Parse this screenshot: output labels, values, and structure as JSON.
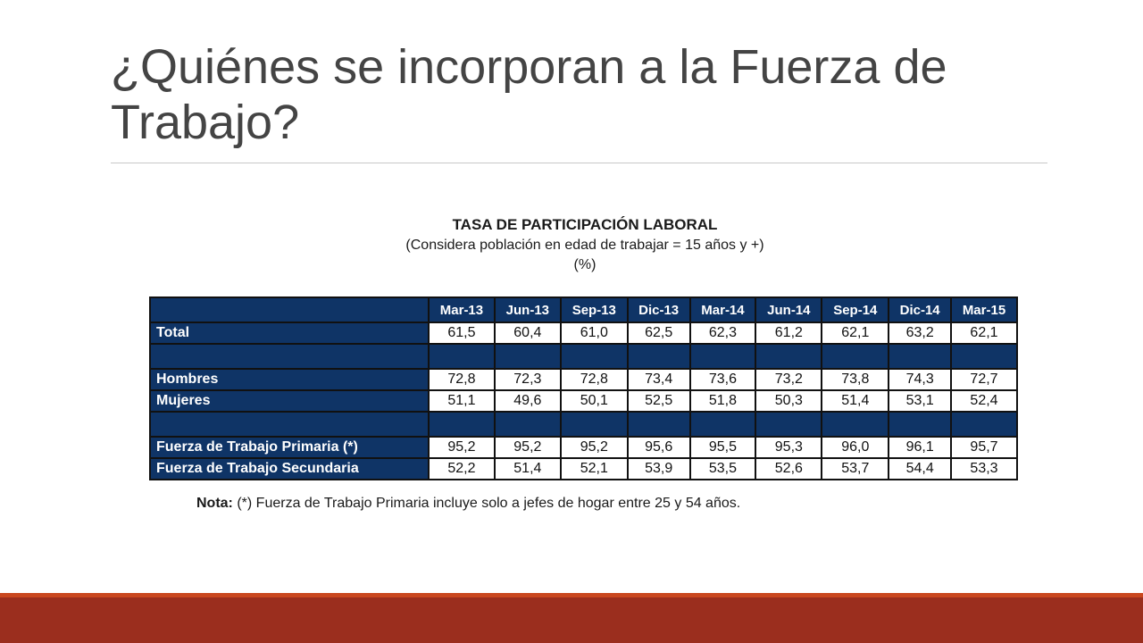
{
  "slide": {
    "title": "¿Quiénes se incorporan a la Fuerza de Trabajo?"
  },
  "table_heading": {
    "title": "TASA DE PARTICIPACIÓN LABORAL",
    "subtitle": "(Considera población en edad de trabajar = 15 años y +)",
    "unit": "(%)"
  },
  "note": {
    "label": "Nota:",
    "text": " (*) Fuerza de Trabajo Primaria incluye solo a jefes de hogar entre 25 y 54 años."
  },
  "colors": {
    "header_blue": "#0f3466",
    "band_red": "#9b2e1e",
    "band_orange": "#c9471f"
  },
  "chart_data": {
    "type": "table",
    "title": "TASA DE PARTICIPACIÓN LABORAL",
    "subtitle": "(Considera población en edad de trabajar = 15 años y +)",
    "unit": "(%)",
    "columns": [
      "Mar-13",
      "Jun-13",
      "Sep-13",
      "Dic-13",
      "Mar-14",
      "Jun-14",
      "Sep-14",
      "Dic-14",
      "Mar-15"
    ],
    "rows": [
      {
        "label": "Total",
        "values": [
          "61,5",
          "60,4",
          "61,0",
          "62,5",
          "62,3",
          "61,2",
          "62,1",
          "63,2",
          "62,1"
        ]
      },
      {
        "label": "",
        "values": [
          "",
          "",
          "",
          "",
          "",
          "",
          "",
          "",
          ""
        ]
      },
      {
        "label": "Hombres",
        "values": [
          "72,8",
          "72,3",
          "72,8",
          "73,4",
          "73,6",
          "73,2",
          "73,8",
          "74,3",
          "72,7"
        ]
      },
      {
        "label": "Mujeres",
        "values": [
          "51,1",
          "49,6",
          "50,1",
          "52,5",
          "51,8",
          "50,3",
          "51,4",
          "53,1",
          "52,4"
        ]
      },
      {
        "label": "",
        "values": [
          "",
          "",
          "",
          "",
          "",
          "",
          "",
          "",
          ""
        ]
      },
      {
        "label": "Fuerza de Trabajo Primaria (*)",
        "values": [
          "95,2",
          "95,2",
          "95,2",
          "95,6",
          "95,5",
          "95,3",
          "96,0",
          "96,1",
          "95,7"
        ]
      },
      {
        "label": "Fuerza de Trabajo Secundaria",
        "values": [
          "52,2",
          "51,4",
          "52,1",
          "53,9",
          "53,5",
          "52,6",
          "53,7",
          "54,4",
          "53,3"
        ]
      }
    ]
  }
}
